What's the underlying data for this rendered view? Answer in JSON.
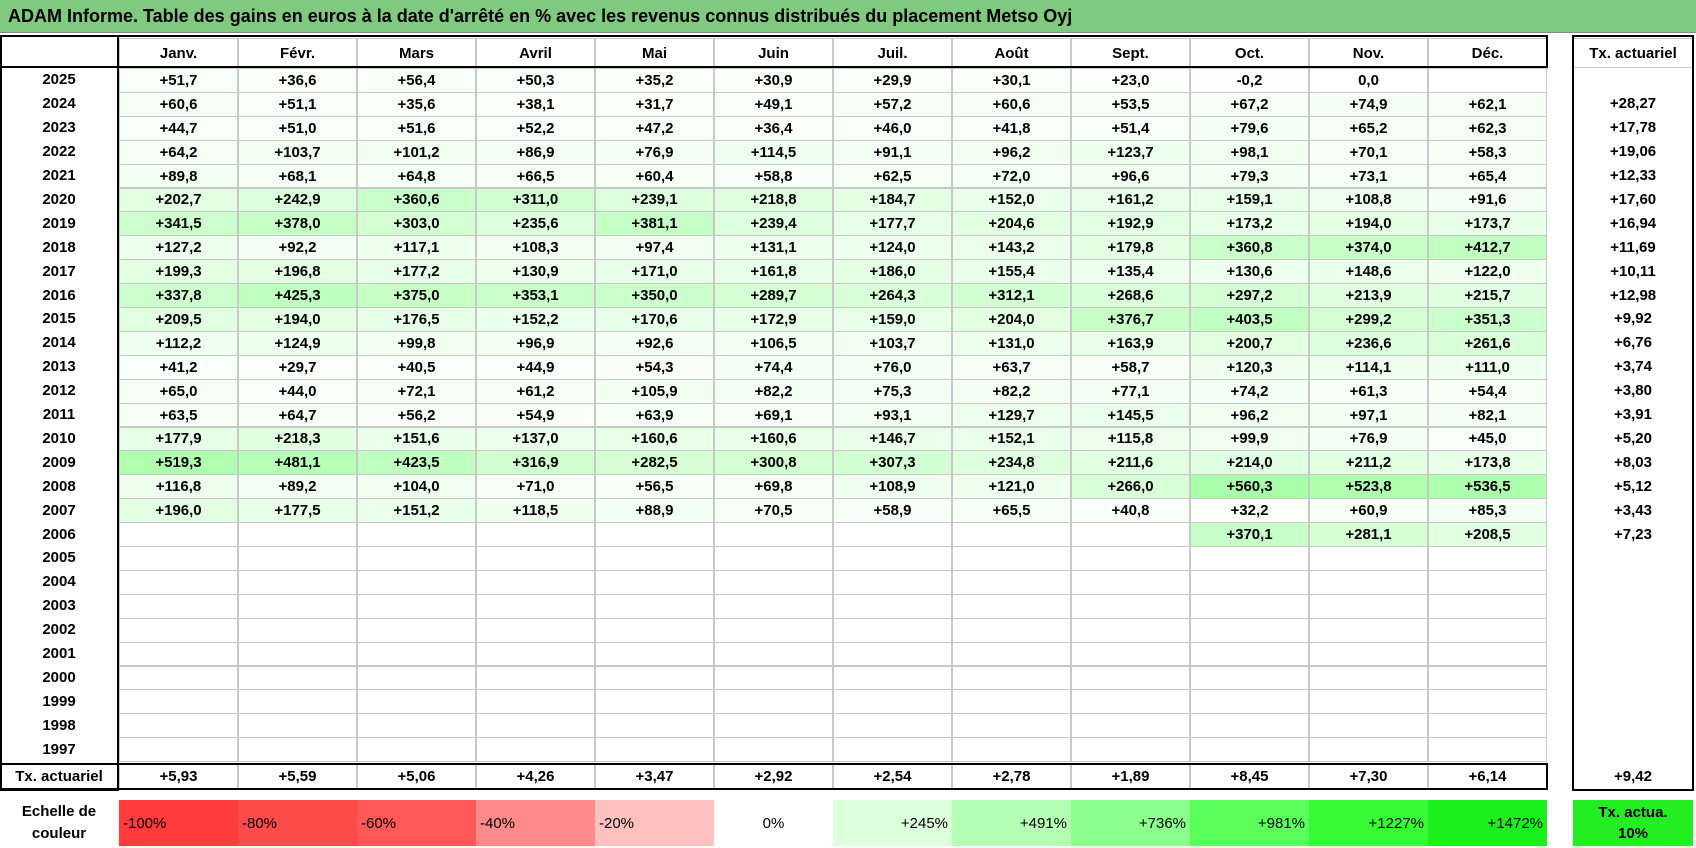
{
  "header": {
    "title": "ADAM Informe. Table des gains en euros à la date d'arrêté en % avec les revenus connus distribués du placement Metso Oyj"
  },
  "table": {
    "columns": [
      "Janv.",
      "Févr.",
      "Mars",
      "Avril",
      "Mai",
      "Juin",
      "Juil.",
      "Août",
      "Sept.",
      "Oct.",
      "Nov.",
      "Déc."
    ],
    "rate_header": "Tx. actuariel",
    "rows": [
      {
        "year": "2025",
        "cells": [
          "+51,7",
          "+36,6",
          "+56,4",
          "+50,3",
          "+35,2",
          "+30,9",
          "+29,9",
          "+30,1",
          "+23,0",
          "-0,2",
          "0,0",
          null
        ],
        "rate": null
      },
      {
        "year": "2024",
        "cells": [
          "+60,6",
          "+51,1",
          "+35,6",
          "+38,1",
          "+31,7",
          "+49,1",
          "+57,2",
          "+60,6",
          "+53,5",
          "+67,2",
          "+74,9",
          "+62,1"
        ],
        "rate": "+28,27"
      },
      {
        "year": "2023",
        "cells": [
          "+44,7",
          "+51,0",
          "+51,6",
          "+52,2",
          "+47,2",
          "+36,4",
          "+46,0",
          "+41,8",
          "+51,4",
          "+79,6",
          "+65,2",
          "+62,3"
        ],
        "rate": "+17,78"
      },
      {
        "year": "2022",
        "cells": [
          "+64,2",
          "+103,7",
          "+101,2",
          "+86,9",
          "+76,9",
          "+114,5",
          "+91,1",
          "+96,2",
          "+123,7",
          "+98,1",
          "+70,1",
          "+58,3"
        ],
        "rate": "+19,06"
      },
      {
        "year": "2021",
        "cells": [
          "+89,8",
          "+68,1",
          "+64,8",
          "+66,5",
          "+60,4",
          "+58,8",
          "+62,5",
          "+72,0",
          "+96,6",
          "+79,3",
          "+73,1",
          "+65,4"
        ],
        "rate": "+12,33"
      },
      {
        "year": "2020",
        "cells": [
          "+202,7",
          "+242,9",
          "+360,6",
          "+311,0",
          "+239,1",
          "+218,8",
          "+184,7",
          "+152,0",
          "+161,2",
          "+159,1",
          "+108,8",
          "+91,6"
        ],
        "rate": "+17,60"
      },
      {
        "year": "2019",
        "cells": [
          "+341,5",
          "+378,0",
          "+303,0",
          "+235,6",
          "+381,1",
          "+239,4",
          "+177,7",
          "+204,6",
          "+192,9",
          "+173,2",
          "+194,0",
          "+173,7"
        ],
        "rate": "+16,94"
      },
      {
        "year": "2018",
        "cells": [
          "+127,2",
          "+92,2",
          "+117,1",
          "+108,3",
          "+97,4",
          "+131,1",
          "+124,0",
          "+143,2",
          "+179,8",
          "+360,8",
          "+374,0",
          "+412,7"
        ],
        "rate": "+11,69"
      },
      {
        "year": "2017",
        "cells": [
          "+199,3",
          "+196,8",
          "+177,2",
          "+130,9",
          "+171,0",
          "+161,8",
          "+186,0",
          "+155,4",
          "+135,4",
          "+130,6",
          "+148,6",
          "+122,0"
        ],
        "rate": "+10,11"
      },
      {
        "year": "2016",
        "cells": [
          "+337,8",
          "+425,3",
          "+375,0",
          "+353,1",
          "+350,0",
          "+289,7",
          "+264,3",
          "+312,1",
          "+268,6",
          "+297,2",
          "+213,9",
          "+215,7"
        ],
        "rate": "+12,98"
      },
      {
        "year": "2015",
        "cells": [
          "+209,5",
          "+194,0",
          "+176,5",
          "+152,2",
          "+170,6",
          "+172,9",
          "+159,0",
          "+204,0",
          "+376,7",
          "+403,5",
          "+299,2",
          "+351,3"
        ],
        "rate": "+9,92"
      },
      {
        "year": "2014",
        "cells": [
          "+112,2",
          "+124,9",
          "+99,8",
          "+96,9",
          "+92,6",
          "+106,5",
          "+103,7",
          "+131,0",
          "+163,9",
          "+200,7",
          "+236,6",
          "+261,6"
        ],
        "rate": "+6,76"
      },
      {
        "year": "2013",
        "cells": [
          "+41,2",
          "+29,7",
          "+40,5",
          "+44,9",
          "+54,3",
          "+74,4",
          "+76,0",
          "+63,7",
          "+58,7",
          "+120,3",
          "+114,1",
          "+111,0"
        ],
        "rate": "+3,74"
      },
      {
        "year": "2012",
        "cells": [
          "+65,0",
          "+44,0",
          "+72,1",
          "+61,2",
          "+105,9",
          "+82,2",
          "+75,3",
          "+82,2",
          "+77,1",
          "+74,2",
          "+61,3",
          "+54,4"
        ],
        "rate": "+3,80"
      },
      {
        "year": "2011",
        "cells": [
          "+63,5",
          "+64,7",
          "+56,2",
          "+54,9",
          "+63,9",
          "+69,1",
          "+93,1",
          "+129,7",
          "+145,5",
          "+96,2",
          "+97,1",
          "+82,1"
        ],
        "rate": "+3,91"
      },
      {
        "year": "2010",
        "cells": [
          "+177,9",
          "+218,3",
          "+151,6",
          "+137,0",
          "+160,6",
          "+160,6",
          "+146,7",
          "+152,1",
          "+115,8",
          "+99,9",
          "+76,9",
          "+45,0"
        ],
        "rate": "+5,20"
      },
      {
        "year": "2009",
        "cells": [
          "+519,3",
          "+481,1",
          "+423,5",
          "+316,9",
          "+282,5",
          "+300,8",
          "+307,3",
          "+234,8",
          "+211,6",
          "+214,0",
          "+211,2",
          "+173,8"
        ],
        "rate": "+8,03"
      },
      {
        "year": "2008",
        "cells": [
          "+116,8",
          "+89,2",
          "+104,0",
          "+71,0",
          "+56,5",
          "+69,8",
          "+108,9",
          "+121,0",
          "+266,0",
          "+560,3",
          "+523,8",
          "+536,5"
        ],
        "rate": "+5,12"
      },
      {
        "year": "2007",
        "cells": [
          "+196,0",
          "+177,5",
          "+151,2",
          "+118,5",
          "+88,9",
          "+70,5",
          "+58,9",
          "+65,5",
          "+40,8",
          "+32,2",
          "+60,9",
          "+85,3"
        ],
        "rate": "+3,43"
      },
      {
        "year": "2006",
        "cells": [
          null,
          null,
          null,
          null,
          null,
          null,
          null,
          null,
          null,
          "+370,1",
          "+281,1",
          "+208,5"
        ],
        "rate": "+7,23"
      },
      {
        "year": "2005",
        "cells": [
          null,
          null,
          null,
          null,
          null,
          null,
          null,
          null,
          null,
          null,
          null,
          null
        ],
        "rate": null
      },
      {
        "year": "2004",
        "cells": [
          null,
          null,
          null,
          null,
          null,
          null,
          null,
          null,
          null,
          null,
          null,
          null
        ],
        "rate": null
      },
      {
        "year": "2003",
        "cells": [
          null,
          null,
          null,
          null,
          null,
          null,
          null,
          null,
          null,
          null,
          null,
          null
        ],
        "rate": null
      },
      {
        "year": "2002",
        "cells": [
          null,
          null,
          null,
          null,
          null,
          null,
          null,
          null,
          null,
          null,
          null,
          null
        ],
        "rate": null
      },
      {
        "year": "2001",
        "cells": [
          null,
          null,
          null,
          null,
          null,
          null,
          null,
          null,
          null,
          null,
          null,
          null
        ],
        "rate": null
      },
      {
        "year": "2000",
        "cells": [
          null,
          null,
          null,
          null,
          null,
          null,
          null,
          null,
          null,
          null,
          null,
          null
        ],
        "rate": null
      },
      {
        "year": "1999",
        "cells": [
          null,
          null,
          null,
          null,
          null,
          null,
          null,
          null,
          null,
          null,
          null,
          null
        ],
        "rate": null
      },
      {
        "year": "1998",
        "cells": [
          null,
          null,
          null,
          null,
          null,
          null,
          null,
          null,
          null,
          null,
          null,
          null
        ],
        "rate": null
      },
      {
        "year": "1997",
        "cells": [
          null,
          null,
          null,
          null,
          null,
          null,
          null,
          null,
          null,
          null,
          null,
          null
        ],
        "rate": null
      }
    ],
    "footer": {
      "label": "Tx. actuariel",
      "cells": [
        "+5,93",
        "+5,59",
        "+5,06",
        "+4,26",
        "+3,47",
        "+2,92",
        "+2,54",
        "+2,78",
        "+1,89",
        "+8,45",
        "+7,30",
        "+6,14"
      ],
      "rate": "+9,42"
    }
  },
  "scale": {
    "label": "Echelle de couleur",
    "steps": [
      "-100%",
      "-80%",
      "-60%",
      "-40%",
      "-20%",
      "0%",
      "+245%",
      "+491%",
      "+736%",
      "+981%",
      "+1227%",
      "+1472%"
    ],
    "colors": [
      "#ff3b3b",
      "#ff4a4a",
      "#ff5858",
      "#ff8a8a",
      "#ffc0c0",
      "#ffffff",
      "#dcffdc",
      "#b4ffb4",
      "#8cff8c",
      "#5aff5a",
      "#36fa36",
      "#1cf01c"
    ],
    "rate_label": "Tx. actua. 10%",
    "rate_color": "#22ee22"
  }
}
